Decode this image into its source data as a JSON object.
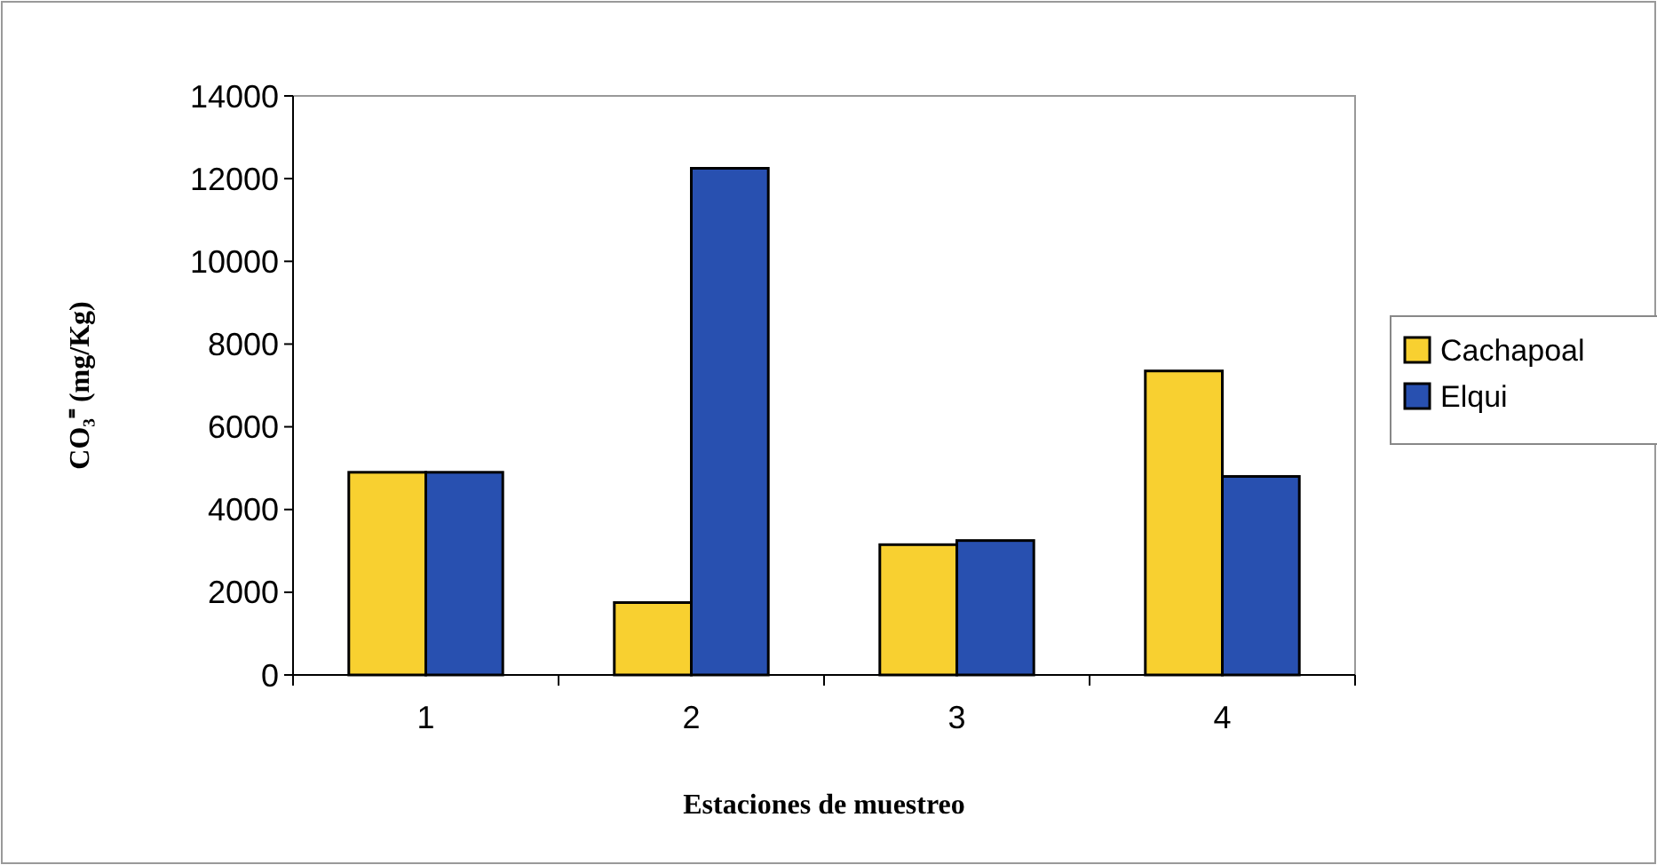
{
  "chart_data": {
    "type": "bar",
    "xlabel": "Estaciones  de muestreo",
    "ylabel": "CO₃⁼ (mg/Kg)",
    "categories": [
      "1",
      "2",
      "3",
      "4"
    ],
    "series": [
      {
        "name": "Cachapoal",
        "color": "#f8d030",
        "values": [
          4900,
          1750,
          3150,
          7350
        ]
      },
      {
        "name": "Elqui",
        "color": "#2850b0",
        "values": [
          4900,
          12250,
          3250,
          4800
        ]
      }
    ],
    "ylim": [
      0,
      14000
    ],
    "yticks": [
      0,
      2000,
      4000,
      6000,
      8000,
      10000,
      12000,
      14000
    ],
    "legend": "right"
  }
}
